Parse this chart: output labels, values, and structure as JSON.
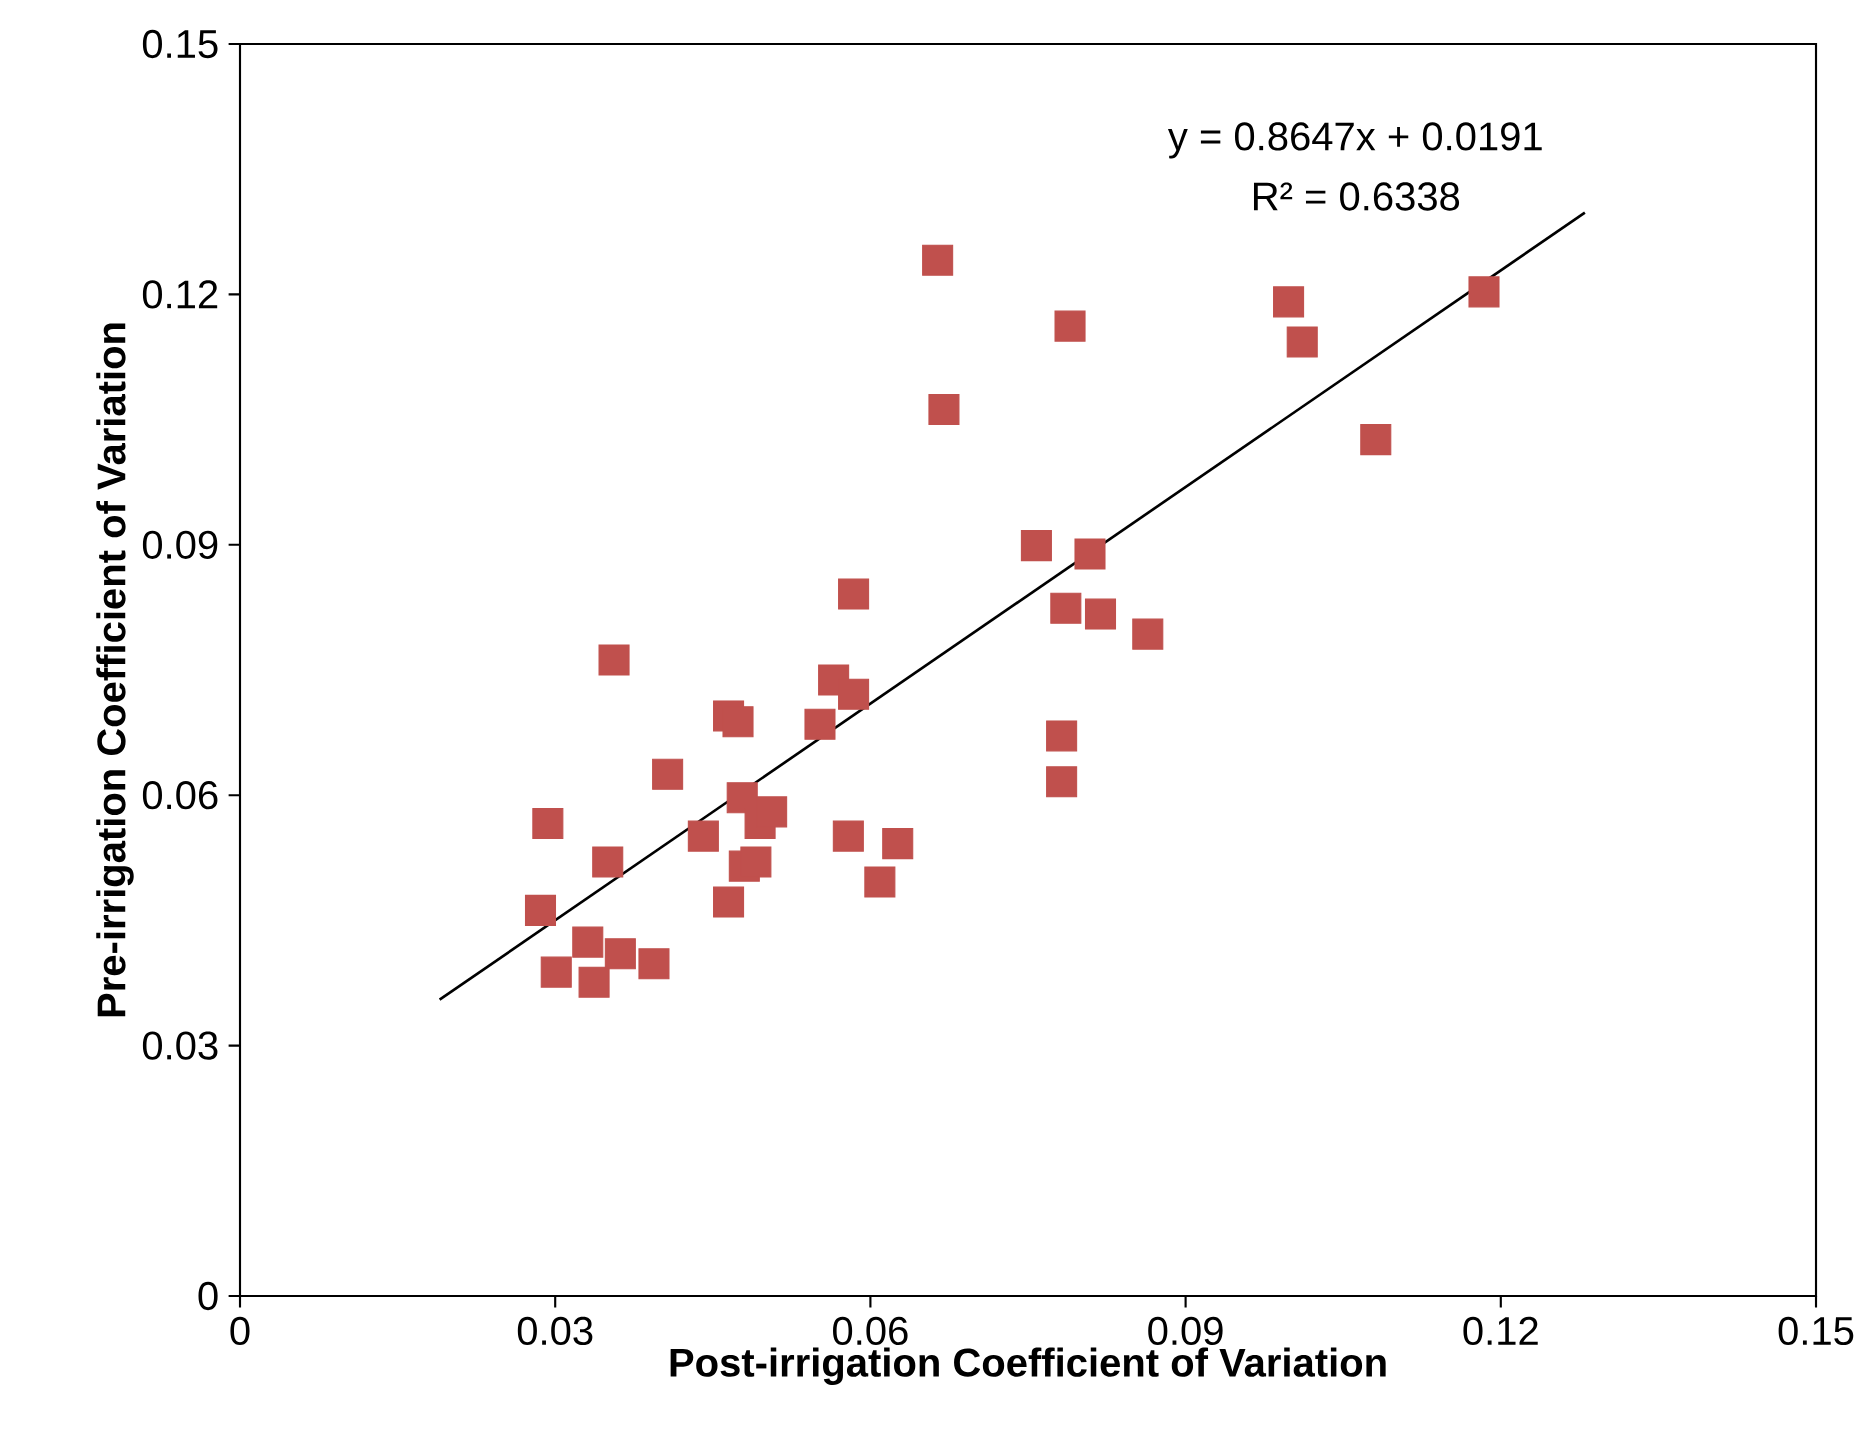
{
  "chart_data": {
    "type": "scatter",
    "xlabel": "Post-irrigation Coefficient of Variation",
    "ylabel": "Pre-irrigation Coefficient of Variation",
    "xlim": [
      0,
      0.15
    ],
    "ylim": [
      0,
      0.15
    ],
    "xticks": [
      0,
      0.03,
      0.06,
      0.09,
      0.12,
      0.15
    ],
    "yticks": [
      0,
      0.03,
      0.06,
      0.09,
      0.12,
      0.15
    ],
    "marker": "square",
    "grid": false,
    "annotations": [
      "y = 0.8647x + 0.0191",
      "R² = 0.6338"
    ],
    "series": [
      {
        "color": "#c0504d",
        "x": [
          0.0293,
          0.0286,
          0.0301,
          0.0331,
          0.0337,
          0.0362,
          0.0394,
          0.035,
          0.0356,
          0.0407,
          0.0441,
          0.0465,
          0.0474,
          0.0465,
          0.0478,
          0.048,
          0.0491,
          0.0495,
          0.0506,
          0.0552,
          0.0565,
          0.0584,
          0.0579,
          0.0584,
          0.0609,
          0.0626,
          0.0664,
          0.067,
          0.0758,
          0.0782,
          0.0782,
          0.0786,
          0.079,
          0.0809,
          0.0819,
          0.0864,
          0.0998,
          0.1011,
          0.1081,
          0.1184
        ],
        "values": [
          0.0566,
          0.0462,
          0.0388,
          0.0424,
          0.0376,
          0.041,
          0.0398,
          0.052,
          0.0762,
          0.0625,
          0.0551,
          0.0695,
          0.0688,
          0.0472,
          0.0597,
          0.0515,
          0.052,
          0.0566,
          0.058,
          0.0685,
          0.0738,
          0.0721,
          0.0551,
          0.0841,
          0.0496,
          0.0542,
          0.1241,
          0.1062,
          0.0899,
          0.0671,
          0.0616,
          0.0824,
          0.1162,
          0.0889,
          0.0817,
          0.0793,
          0.1191,
          0.1143,
          0.1026,
          0.1203
        ]
      },
      {
        "type": "line",
        "color": "#000000",
        "marker": "none",
        "line_style": "solid",
        "x": [
          0.019,
          0.128
        ],
        "values": [
          0.0355,
          0.1298
        ]
      }
    ]
  }
}
